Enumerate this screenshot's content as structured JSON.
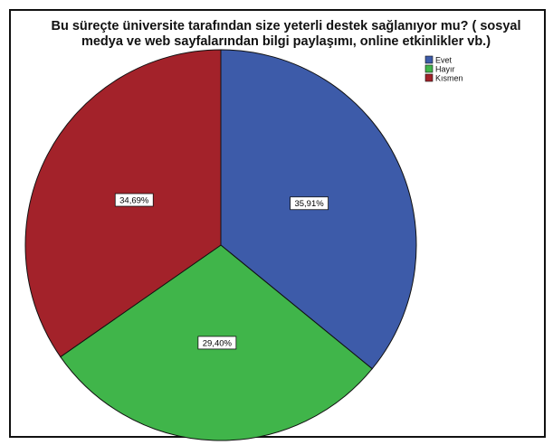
{
  "chart_data": {
    "type": "pie",
    "title_lines": [
      "Bu süreçte üniversite tarafından size yeterli destek sağlanıyor mu? ( sosyal",
      "medya ve web sayfalarından bilgi paylaşımı, online etkinlikler vb.)"
    ],
    "legend_placement": "top-right",
    "categories": [
      "Evet",
      "Hayır",
      "Kısmen"
    ],
    "values": [
      35.91,
      29.4,
      34.69
    ],
    "labels": [
      "35,91%",
      "29,40%",
      "34,69%"
    ],
    "colors": [
      "#3d5ba9",
      "#40b54a",
      "#a3222a"
    ]
  }
}
